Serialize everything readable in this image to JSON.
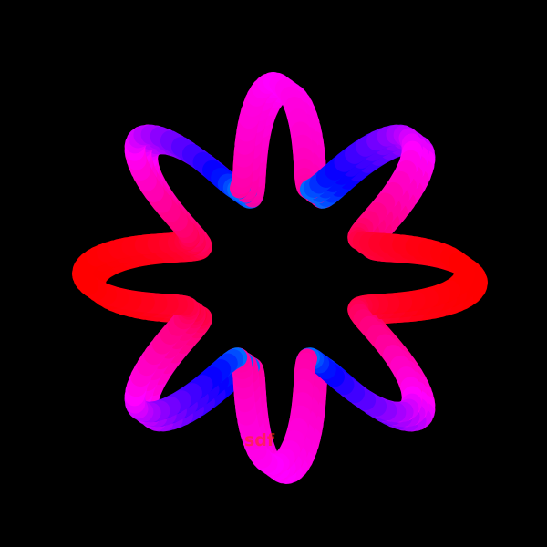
{
  "image": {
    "background_color": "#000000",
    "subject": "rainbow-ribbon-star-loop",
    "watermark_text": "sdf"
  },
  "ribbon": {
    "palette": [
      "#ff0000",
      "#ff8800",
      "#ffee00",
      "#00ff00",
      "#00ffff",
      "#0000ff",
      "#8800ff",
      "#ff00ff",
      "#ff0044"
    ]
  }
}
